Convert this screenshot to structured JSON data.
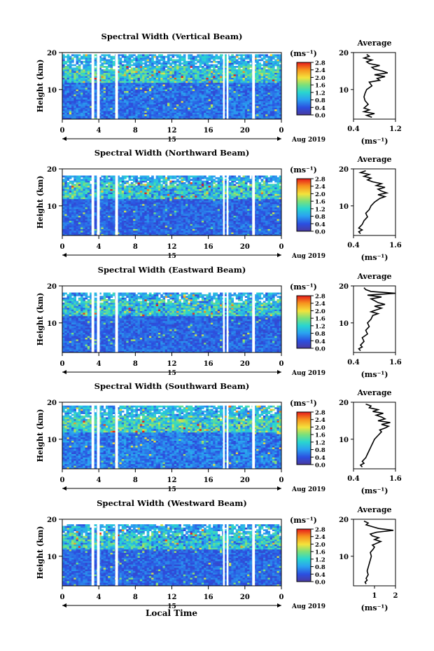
{
  "figure": {
    "xlabel": "Local Time",
    "date_label": "Aug 2019",
    "day_label": "15",
    "colorbar_unit": "(ms⁻¹)",
    "colorbar_ticks": [
      "0.0",
      "0.4",
      "0.8",
      "1.2",
      "1.6",
      "2.0",
      "2.4",
      "2.8"
    ],
    "avg_title": "Average",
    "avg_unit": "(ms⁻¹)",
    "ylabel": "Height (km)"
  },
  "chart_data": [
    {
      "type": "heatmap",
      "title": "Spectral Width (Vertical Beam)",
      "xlabel": "Local Time",
      "ylabel": "Height (km)",
      "x_ticks": [
        "0",
        "4",
        "8",
        "12",
        "16",
        "20",
        "0"
      ],
      "xlim": [
        0,
        24
      ],
      "y_ticks": [
        "10",
        "20"
      ],
      "ylim": [
        2,
        20
      ],
      "colorbar": {
        "unit": "ms-1",
        "range": [
          0.0,
          2.8
        ]
      },
      "data_gaps_hours": [
        [
          3.2,
          3.5
        ],
        [
          3.8,
          4.1
        ],
        [
          5.8,
          6.1
        ],
        [
          17.6,
          17.8
        ],
        [
          18.0,
          18.2
        ],
        [
          20.8,
          21.1
        ]
      ],
      "mean_width": 0.55,
      "top_km": 19.5,
      "average_profile": {
        "xlim": [
          0.4,
          1.2
        ],
        "x_ticks": [
          "0.4",
          "1.2"
        ],
        "height_km": [
          2.5,
          3,
          3.5,
          4,
          4.5,
          5,
          6,
          7,
          8,
          9,
          10,
          11,
          12,
          12.5,
          13,
          13.5,
          14,
          14.5,
          15,
          15.5,
          16,
          16.5,
          17,
          17.5,
          18,
          18.5,
          19,
          19.5
        ],
        "width": [
          0.75,
          0.65,
          0.8,
          0.6,
          0.7,
          0.6,
          0.68,
          0.62,
          0.6,
          0.62,
          0.65,
          0.75,
          0.7,
          0.9,
          0.85,
          1.0,
          0.8,
          1.05,
          0.95,
          0.8,
          0.75,
          0.9,
          0.7,
          0.65,
          0.75,
          0.6,
          0.7,
          0.65
        ]
      }
    },
    {
      "type": "heatmap",
      "title": "Spectral Width (Northward Beam)",
      "xlabel": "Local Time",
      "ylabel": "Height (km)",
      "x_ticks": [
        "0",
        "4",
        "8",
        "12",
        "16",
        "20",
        "0"
      ],
      "xlim": [
        0,
        24
      ],
      "y_ticks": [
        "10",
        "20"
      ],
      "ylim": [
        2,
        20
      ],
      "colorbar": {
        "unit": "ms-1",
        "range": [
          0.0,
          2.8
        ]
      },
      "data_gaps_hours": [
        [
          3.2,
          3.5
        ],
        [
          3.8,
          4.1
        ],
        [
          5.8,
          6.1
        ],
        [
          17.6,
          17.8
        ],
        [
          18.0,
          18.2
        ],
        [
          20.8,
          21.1
        ]
      ],
      "mean_width": 0.5,
      "top_km": 18.3,
      "average_profile": {
        "xlim": [
          0.4,
          1.6
        ],
        "x_ticks": [
          "0.4",
          "1.6"
        ],
        "height_km": [
          2.5,
          3,
          3.5,
          4,
          5,
          6,
          7,
          8,
          9,
          10,
          11,
          12,
          12.5,
          13,
          13.5,
          14,
          14.5,
          15,
          15.5,
          16,
          16.5,
          17,
          17.5,
          18,
          18.5,
          19,
          19.5
        ],
        "width": [
          0.6,
          0.55,
          0.65,
          0.55,
          0.65,
          0.7,
          0.8,
          0.75,
          0.85,
          0.9,
          1.0,
          1.15,
          1.3,
          1.1,
          1.35,
          1.2,
          1.1,
          1.3,
          1.05,
          1.2,
          0.95,
          0.8,
          0.9,
          0.7,
          0.85,
          0.6,
          0.75
        ]
      }
    },
    {
      "type": "heatmap",
      "title": "Spectral Width (Eastward Beam)",
      "xlabel": "Local Time",
      "ylabel": "Height (km)",
      "x_ticks": [
        "0",
        "4",
        "8",
        "12",
        "16",
        "20",
        "0"
      ],
      "xlim": [
        0,
        24
      ],
      "y_ticks": [
        "10",
        "20"
      ],
      "ylim": [
        2,
        20
      ],
      "colorbar": {
        "unit": "ms-1",
        "range": [
          0.0,
          2.8
        ]
      },
      "data_gaps_hours": [
        [
          3.2,
          3.5
        ],
        [
          3.8,
          4.1
        ],
        [
          5.8,
          6.1
        ],
        [
          17.6,
          17.8
        ],
        [
          18.0,
          18.2
        ],
        [
          20.8,
          21.1
        ]
      ],
      "mean_width": 0.5,
      "top_km": 18.2,
      "average_profile": {
        "xlim": [
          0.4,
          1.6
        ],
        "x_ticks": [
          "0.4",
          "1.6"
        ],
        "height_km": [
          2.5,
          3,
          3.5,
          4,
          5,
          6,
          7,
          8,
          9,
          10,
          11,
          12,
          12.5,
          13,
          13.5,
          14,
          14.5,
          15,
          15.5,
          16,
          16.5,
          17,
          17.5,
          18,
          18.5,
          19,
          19.5
        ],
        "width": [
          0.6,
          0.55,
          0.65,
          0.6,
          0.7,
          0.65,
          0.8,
          0.75,
          0.85,
          0.8,
          0.9,
          0.95,
          1.1,
          0.9,
          1.05,
          1.2,
          1.0,
          1.3,
          1.1,
          1.0,
          0.9,
          1.2,
          0.8,
          1.6,
          0.9,
          0.75,
          0.7
        ]
      }
    },
    {
      "type": "heatmap",
      "title": "Spectral Width (Southward Beam)",
      "xlabel": "Local Time",
      "ylabel": "Height (km)",
      "x_ticks": [
        "0",
        "4",
        "8",
        "12",
        "16",
        "20",
        "0"
      ],
      "xlim": [
        0,
        24
      ],
      "y_ticks": [
        "10",
        "20"
      ],
      "ylim": [
        2,
        20
      ],
      "colorbar": {
        "unit": "ms-1",
        "range": [
          0.0,
          2.8
        ]
      },
      "data_gaps_hours": [
        [
          3.2,
          3.5
        ],
        [
          3.8,
          4.1
        ],
        [
          5.8,
          6.1
        ],
        [
          17.6,
          17.8
        ],
        [
          18.0,
          18.2
        ],
        [
          20.8,
          21.1
        ]
      ],
      "mean_width": 0.6,
      "top_km": 19.0,
      "average_profile": {
        "xlim": [
          0.4,
          1.6
        ],
        "x_ticks": [
          "0.4",
          "1.6"
        ],
        "height_km": [
          2.5,
          3,
          3.5,
          4,
          5,
          6,
          7,
          8,
          9,
          10,
          11,
          12,
          12.5,
          13,
          13.5,
          14,
          14.5,
          15,
          15.5,
          16,
          16.5,
          17,
          17.5,
          18,
          18.5,
          19,
          19.5
        ],
        "width": [
          0.65,
          0.6,
          0.7,
          0.65,
          0.75,
          0.8,
          0.85,
          0.9,
          0.95,
          1.0,
          1.1,
          1.2,
          1.15,
          1.3,
          1.4,
          1.2,
          1.45,
          1.1,
          1.3,
          1.2,
          1.05,
          1.25,
          0.95,
          1.1,
          0.85,
          0.9,
          0.75
        ]
      }
    },
    {
      "type": "heatmap",
      "title": "Spectral Width (Westward Beam)",
      "xlabel": "Local Time",
      "ylabel": "Height (km)",
      "x_ticks": [
        "0",
        "4",
        "8",
        "12",
        "16",
        "20",
        "0"
      ],
      "xlim": [
        0,
        24
      ],
      "y_ticks": [
        "10",
        "20"
      ],
      "ylim": [
        2,
        20
      ],
      "colorbar": {
        "unit": "ms-1",
        "range": [
          0.0,
          2.8
        ]
      },
      "data_gaps_hours": [
        [
          3.2,
          3.5
        ],
        [
          3.8,
          4.1
        ],
        [
          5.8,
          6.1
        ],
        [
          17.6,
          17.8
        ],
        [
          18.0,
          18.2
        ],
        [
          20.8,
          21.1
        ]
      ],
      "mean_width": 0.5,
      "top_km": 18.8,
      "average_profile": {
        "xlim": [
          0.0,
          2.0
        ],
        "x_ticks": [
          "1",
          "2"
        ],
        "height_km": [
          2.5,
          3,
          3.5,
          4,
          5,
          6,
          7,
          8,
          9,
          10,
          11,
          12,
          12.5,
          13,
          13.5,
          14,
          14.5,
          15,
          15.5,
          16,
          16.5,
          17,
          17.5,
          18,
          18.5,
          19,
          19.5
        ],
        "width": [
          0.6,
          0.55,
          0.65,
          0.6,
          0.7,
          0.65,
          0.7,
          0.75,
          0.8,
          0.85,
          0.8,
          0.95,
          1.0,
          0.9,
          1.1,
          1.3,
          1.0,
          1.2,
          0.9,
          0.8,
          1.1,
          1.9,
          1.2,
          0.9,
          0.6,
          0.7,
          0.5
        ]
      }
    }
  ]
}
